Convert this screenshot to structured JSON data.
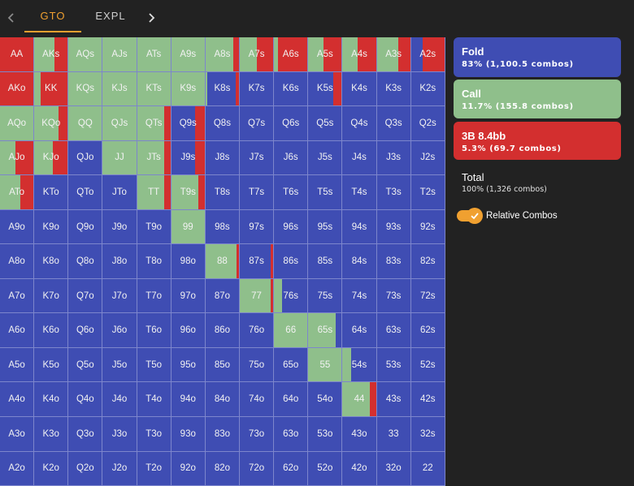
{
  "colors": {
    "fold": "#3f4db3",
    "call": "#8fbf8b",
    "raise": "#d32f2f",
    "accent": "#f0a030",
    "background": "#222222"
  },
  "header": {
    "tabs": [
      {
        "label": "GTO",
        "active": true
      },
      {
        "label": "EXPL",
        "active": false
      }
    ],
    "prev_icon": "chevron-left-icon",
    "next_icon": "chevron-right-icon"
  },
  "actions": {
    "fold": {
      "title": "Fold",
      "summary": "83% (1,100.5 combos)"
    },
    "call": {
      "title": "Call",
      "summary": "11.7% (155.8 combos)"
    },
    "raise": {
      "title": "3B 8.4bb",
      "summary": "5.3% (69.7 combos)"
    }
  },
  "total": {
    "title": "Total",
    "summary": "100% (1,326 combos)"
  },
  "toggle": {
    "label": "Relative Combos",
    "checked": true,
    "icon": "checkmark-icon"
  },
  "hand_labels": [
    [
      "AA",
      "AKs",
      "AQs",
      "AJs",
      "ATs",
      "A9s",
      "A8s",
      "A7s",
      "A6s",
      "A5s",
      "A4s",
      "A3s",
      "A2s"
    ],
    [
      "AKo",
      "KK",
      "KQs",
      "KJs",
      "KTs",
      "K9s",
      "K8s",
      "K7s",
      "K6s",
      "K5s",
      "K4s",
      "K3s",
      "K2s"
    ],
    [
      "AQo",
      "KQo",
      "QQ",
      "QJs",
      "QTs",
      "Q9s",
      "Q8s",
      "Q7s",
      "Q6s",
      "Q5s",
      "Q4s",
      "Q3s",
      "Q2s"
    ],
    [
      "AJo",
      "KJo",
      "QJo",
      "JJ",
      "JTs",
      "J9s",
      "J8s",
      "J7s",
      "J6s",
      "J5s",
      "J4s",
      "J3s",
      "J2s"
    ],
    [
      "ATo",
      "KTo",
      "QTo",
      "JTo",
      "TT",
      "T9s",
      "T8s",
      "T7s",
      "T6s",
      "T5s",
      "T4s",
      "T3s",
      "T2s"
    ],
    [
      "A9o",
      "K9o",
      "Q9o",
      "J9o",
      "T9o",
      "99",
      "98s",
      "97s",
      "96s",
      "95s",
      "94s",
      "93s",
      "92s"
    ],
    [
      "A8o",
      "K8o",
      "Q8o",
      "J8o",
      "T8o",
      "98o",
      "88",
      "87s",
      "86s",
      "85s",
      "84s",
      "83s",
      "82s"
    ],
    [
      "A7o",
      "K7o",
      "Q7o",
      "J7o",
      "T7o",
      "97o",
      "87o",
      "77",
      "76s",
      "75s",
      "74s",
      "73s",
      "72s"
    ],
    [
      "A6o",
      "K6o",
      "Q6o",
      "J6o",
      "T6o",
      "96o",
      "86o",
      "76o",
      "66",
      "65s",
      "64s",
      "63s",
      "62s"
    ],
    [
      "A5o",
      "K5o",
      "Q5o",
      "J5o",
      "T5o",
      "95o",
      "85o",
      "75o",
      "65o",
      "55",
      "54s",
      "53s",
      "52s"
    ],
    [
      "A4o",
      "K4o",
      "Q4o",
      "J4o",
      "T4o",
      "94o",
      "84o",
      "74o",
      "64o",
      "54o",
      "44",
      "43s",
      "42s"
    ],
    [
      "A3o",
      "K3o",
      "Q3o",
      "J3o",
      "T3o",
      "93o",
      "83o",
      "73o",
      "63o",
      "53o",
      "43o",
      "33",
      "32s"
    ],
    [
      "A2o",
      "K2o",
      "Q2o",
      "J2o",
      "T2o",
      "92o",
      "82o",
      "72o",
      "62o",
      "52o",
      "42o",
      "32o",
      "22"
    ]
  ],
  "hand_frequencies": {
    "AA": {
      "raise": 1.0
    },
    "AKs": {
      "call": 0.6,
      "raise": 0.4
    },
    "AQs": {
      "call": 1.0
    },
    "AJs": {
      "call": 1.0
    },
    "ATs": {
      "call": 1.0
    },
    "A9s": {
      "call": 1.0
    },
    "A8s": {
      "call": 0.82,
      "raise": 0.18
    },
    "A7s": {
      "call": 0.5,
      "raise": 0.5
    },
    "A6s": {
      "call": 0.12,
      "raise": 0.88
    },
    "A5s": {
      "call": 0.45,
      "raise": 0.55
    },
    "A4s": {
      "call": 0.45,
      "raise": 0.55
    },
    "A3s": {
      "call": 0.65,
      "raise": 0.35
    },
    "A2s": {
      "fold": 0.35,
      "raise": 0.65
    },
    "AKo": {
      "raise": 1.0
    },
    "KK": {
      "call": 0.18,
      "raise": 0.82
    },
    "KQs": {
      "call": 1.0
    },
    "KJs": {
      "call": 1.0
    },
    "KTs": {
      "call": 1.0
    },
    "K9s": {
      "call": 1.0
    },
    "K8s": {
      "fold": 0.85,
      "call": 0.05,
      "raise": 0.1
    },
    "K5s": {
      "fold": 0.75,
      "raise": 0.25
    },
    "AQo": {
      "call": 1.0
    },
    "KQo": {
      "call": 0.72,
      "raise": 0.28
    },
    "QQ": {
      "call": 1.0
    },
    "QJs": {
      "call": 1.0
    },
    "QTs": {
      "call": 0.82,
      "raise": 0.18
    },
    "Q9s": {
      "fold": 0.72,
      "raise": 0.28
    },
    "AJo": {
      "call": 0.45,
      "raise": 0.55
    },
    "KJo": {
      "raise": 0.45,
      "call": 0.55
    },
    "JJ": {
      "call": 1.0
    },
    "JTs": {
      "call": 0.82,
      "raise": 0.18
    },
    "J9s": {
      "fold": 0.72,
      "raise": 0.28
    },
    "ATo": {
      "call": 0.6,
      "raise": 0.4
    },
    "TT": {
      "call": 0.82,
      "raise": 0.18
    },
    "T9s": {
      "call": 0.82,
      "raise": 0.18
    },
    "99": {
      "call": 1.0
    },
    "88": {
      "call": 0.92,
      "raise": 0.08
    },
    "87s": {
      "fold": 0.92,
      "raise": 0.08
    },
    "77": {
      "call": 0.92,
      "raise": 0.08
    },
    "76s": {
      "fold": 0.75,
      "call": 0.25
    },
    "66": {
      "call": 1.0
    },
    "65s": {
      "fold": 0.18,
      "call": 0.82
    },
    "55": {
      "call": 1.0
    },
    "54s": {
      "fold": 0.75,
      "call": 0.25
    },
    "44": {
      "call": 0.82,
      "raise": 0.18
    }
  }
}
